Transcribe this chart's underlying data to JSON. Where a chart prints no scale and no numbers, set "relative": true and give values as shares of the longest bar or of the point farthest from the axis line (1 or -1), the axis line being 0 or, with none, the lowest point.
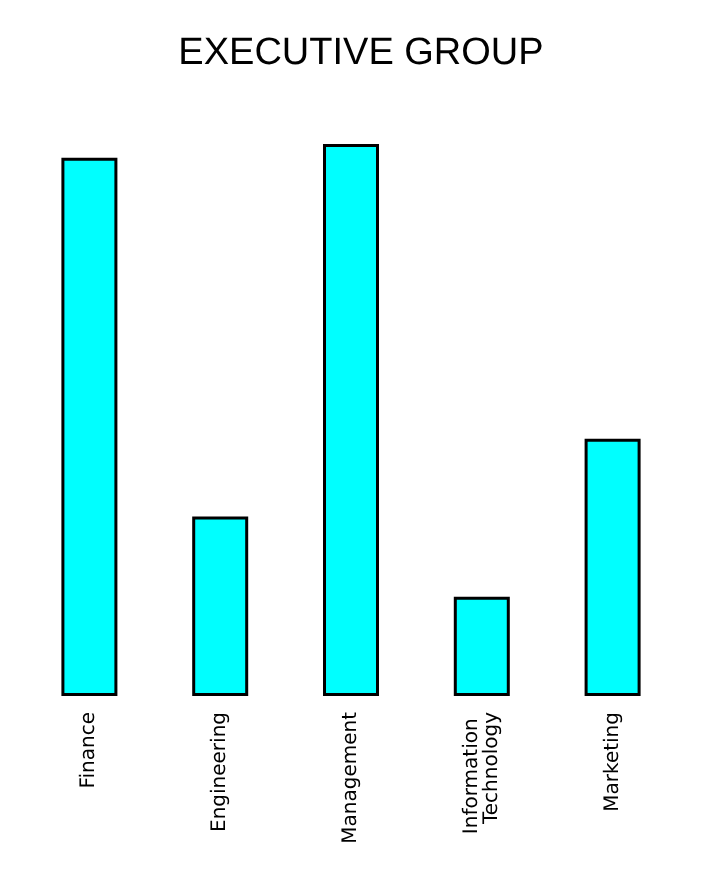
{
  "chart_data": {
    "type": "bar",
    "title": "EXECUTIVE GROUP",
    "relative": true,
    "categories": [
      "Finance",
      "Engineering",
      "Management",
      "Information Technology",
      "Marketing"
    ],
    "values": [
      0.975,
      0.325,
      1,
      0.18,
      0.466
    ],
    "color": "#00ffff"
  }
}
